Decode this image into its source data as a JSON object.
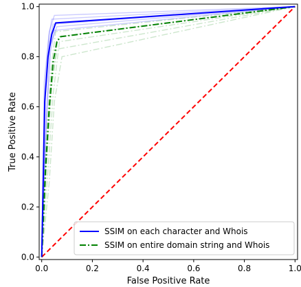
{
  "chart_data": {
    "type": "line",
    "title": "",
    "xlabel": "False Positive Rate",
    "ylabel": "True Positive Rate",
    "xlim": [
      -0.01,
      1.01
    ],
    "ylim": [
      -0.01,
      1.01
    ],
    "xticks": [
      0.0,
      0.2,
      0.4,
      0.6,
      0.8,
      1.0
    ],
    "yticks": [
      0.0,
      0.2,
      0.4,
      0.6,
      0.8,
      1.0
    ],
    "xtick_labels": [
      "0.0",
      "0.2",
      "0.4",
      "0.6",
      "0.8",
      "1.0"
    ],
    "ytick_labels": [
      "0.0",
      "0.2",
      "0.4",
      "0.6",
      "0.8",
      "1.0"
    ],
    "grid": false,
    "legend_position": "lower-right",
    "series": [
      {
        "name": "SSIM on each character and Whois",
        "color": "#0000ff",
        "style": "solid",
        "x": [
          0,
          0.012,
          0.025,
          0.04,
          0.055,
          1.0
        ],
        "y": [
          0,
          0.62,
          0.8,
          0.89,
          0.935,
          1.0
        ]
      },
      {
        "name": "SSIM on entire domain string and Whois",
        "color": "#008000",
        "style": "dashdot",
        "x": [
          0,
          0.015,
          0.03,
          0.045,
          0.06,
          0.075,
          1.0
        ],
        "y": [
          0,
          0.35,
          0.6,
          0.78,
          0.86,
          0.88,
          1.0
        ]
      },
      {
        "name": "",
        "color": "#ff0000",
        "style": "dashed",
        "x": [
          0,
          1
        ],
        "y": [
          0,
          1
        ]
      }
    ],
    "faint_series": [
      {
        "color": "#0000ff",
        "style": "solid",
        "x": [
          0,
          0.01,
          0.03,
          0.05,
          1.0
        ],
        "y": [
          0,
          0.7,
          0.9,
          0.965,
          1.0
        ]
      },
      {
        "color": "#0000ff",
        "style": "solid",
        "x": [
          0,
          0.015,
          0.03,
          0.045,
          1.0
        ],
        "y": [
          0,
          0.65,
          0.86,
          0.93,
          1.0
        ]
      },
      {
        "color": "#0000ff",
        "style": "solid",
        "x": [
          0,
          0.02,
          0.035,
          0.05,
          1.0
        ],
        "y": [
          0,
          0.58,
          0.82,
          0.905,
          1.0
        ]
      },
      {
        "color": "#0000ff",
        "style": "solid",
        "x": [
          0,
          0.012,
          0.028,
          0.04,
          1.0
        ],
        "y": [
          0,
          0.66,
          0.88,
          0.95,
          1.0
        ]
      },
      {
        "color": "#0000ff",
        "style": "solid",
        "x": [
          0,
          0.018,
          0.032,
          0.06,
          1.0
        ],
        "y": [
          0,
          0.55,
          0.84,
          0.92,
          1.0
        ]
      },
      {
        "color": "#008000",
        "style": "dashdot",
        "x": [
          0,
          0.02,
          0.04,
          0.06,
          1.0
        ],
        "y": [
          0,
          0.4,
          0.7,
          0.83,
          1.0
        ]
      },
      {
        "color": "#008000",
        "style": "dashdot",
        "x": [
          0,
          0.015,
          0.035,
          0.055,
          1.0
        ],
        "y": [
          0,
          0.45,
          0.74,
          0.9,
          1.0
        ]
      },
      {
        "color": "#008000",
        "style": "dashdot",
        "x": [
          0,
          0.025,
          0.045,
          0.07,
          1.0
        ],
        "y": [
          0,
          0.35,
          0.65,
          0.86,
          1.0
        ]
      },
      {
        "color": "#008000",
        "style": "dashdot",
        "x": [
          0,
          0.02,
          0.04,
          0.065,
          1.0
        ],
        "y": [
          0,
          0.38,
          0.68,
          0.88,
          1.0
        ]
      },
      {
        "color": "#008000",
        "style": "dashdot",
        "x": [
          0,
          0.03,
          0.05,
          0.08,
          1.0
        ],
        "y": [
          0,
          0.3,
          0.62,
          0.8,
          1.0
        ]
      }
    ]
  }
}
